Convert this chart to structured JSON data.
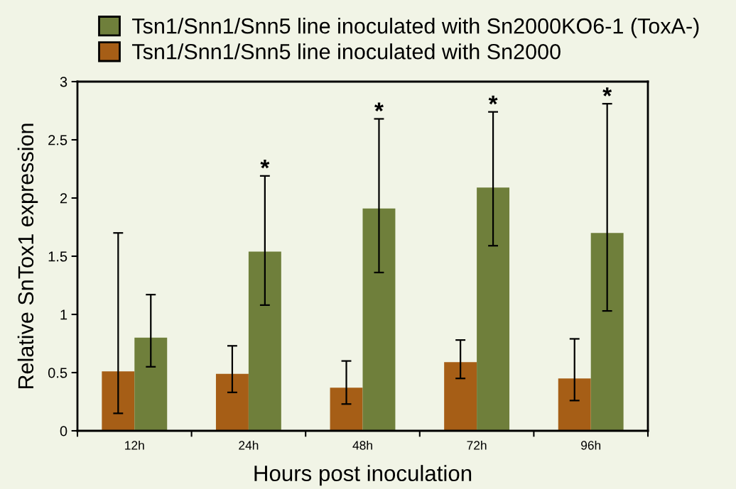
{
  "chart_data": {
    "type": "bar",
    "xlabel": "Hours post inoculation",
    "ylabel": "Relative SnTox1 expression",
    "categories": [
      "12h",
      "24h",
      "48h",
      "72h",
      "96h"
    ],
    "series": [
      {
        "name": "Tsn1/Snn1/Snn5 line inoculated with Sn2000",
        "color": "#a65e16",
        "values": [
          0.51,
          0.49,
          0.37,
          0.59,
          0.45
        ],
        "errors": [
          [
            0.15,
            1.7
          ],
          [
            0.33,
            0.73
          ],
          [
            0.23,
            0.6
          ],
          [
            0.45,
            0.78
          ],
          [
            0.26,
            0.79
          ]
        ]
      },
      {
        "name": "Tsn1/Snn1/Snn5 line inoculated with Sn2000KO6-1 (ToxA-)",
        "color": "#6f7f3b",
        "values": [
          0.8,
          1.54,
          1.91,
          2.09,
          1.7
        ],
        "errors": [
          [
            0.55,
            1.17
          ],
          [
            1.08,
            2.19
          ],
          [
            1.36,
            2.68
          ],
          [
            1.59,
            2.74
          ],
          [
            1.03,
            2.81
          ]
        ]
      }
    ],
    "ylim": [
      0,
      3
    ],
    "yticks": [
      0,
      0.5,
      1,
      1.5,
      2,
      2.5,
      3
    ],
    "annotations": [
      "*",
      "*",
      "*",
      "*"
    ],
    "legend": "top"
  }
}
